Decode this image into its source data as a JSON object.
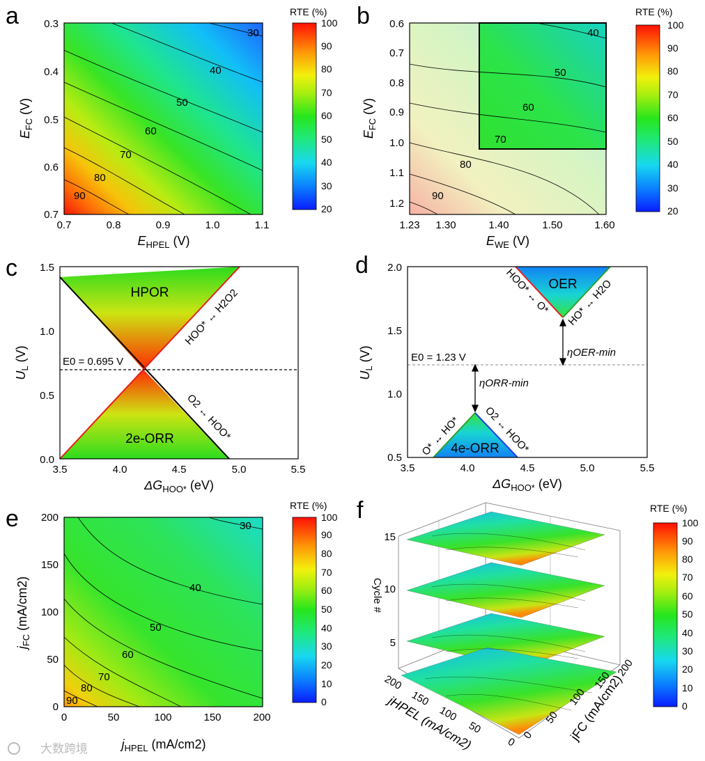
{
  "figure": {
    "panels": [
      "a",
      "b",
      "c",
      "d",
      "e",
      "f"
    ],
    "watermark": "大数跨境",
    "colorbar_title": "RTE (%)"
  },
  "chart_data": [
    {
      "panel": "a",
      "type": "heatmap",
      "xlabel_main": "E",
      "xlabel_sub": "HPEL",
      "xlabel_unit": " (V)",
      "ylabel_main": "E",
      "ylabel_sub": "FC",
      "ylabel_unit": " (V)",
      "xticks": [
        "0.7",
        "0.8",
        "0.9",
        "1.0",
        "1.1"
      ],
      "yticks": [
        "0.3",
        "0.4",
        "0.5",
        "0.6",
        "0.7"
      ],
      "contours": [
        "30",
        "40",
        "50",
        "60",
        "70",
        "80",
        "90"
      ],
      "colorbar": [
        "20",
        "30",
        "40",
        "50",
        "60",
        "70",
        "80",
        "90",
        "100"
      ]
    },
    {
      "panel": "b",
      "type": "heatmap",
      "xlabel_main": "E",
      "xlabel_sub": "WE",
      "xlabel_unit": " (V)",
      "ylabel_main": "E",
      "ylabel_sub": "FC",
      "ylabel_unit": " (V)",
      "xticks": [
        "1.23",
        "1.30",
        "1.40",
        "1.50",
        "1.60"
      ],
      "yticks": [
        "0.6",
        "0.7",
        "0.8",
        "0.9",
        "1.0",
        "1.1",
        "1.2"
      ],
      "contours": [
        "40",
        "50",
        "60",
        "70",
        "80",
        "90"
      ],
      "colorbar": [
        "20",
        "30",
        "40",
        "50",
        "60",
        "70",
        "80",
        "90",
        "100"
      ]
    },
    {
      "panel": "c",
      "type": "area",
      "xlabel_main": "ΔG",
      "xlabel_sub": "HOO*",
      "xlabel_unit": " (eV)",
      "ylabel_main": "U",
      "ylabel_sub": "L",
      "ylabel_unit": " (V)",
      "xticks": [
        "3.5",
        "4.0",
        "4.5",
        "5.0",
        "5.5"
      ],
      "yticks": [
        "0.0",
        "0.5",
        "1.0",
        "1.5"
      ],
      "region_top": "HPOR",
      "region_bottom": "2e-ORR",
      "line_upper": "HOO* ↔ H2O2",
      "line_lower": "O2 ↔ HOO*",
      "e0_label": "E0 = 0.695 V",
      "e0_value": 0.695
    },
    {
      "panel": "d",
      "type": "area",
      "xlabel_main": "ΔG",
      "xlabel_sub": "HOO*",
      "xlabel_unit": " (eV)",
      "ylabel_main": "U",
      "ylabel_sub": "L",
      "ylabel_unit": " (V)",
      "xticks": [
        "3.5",
        "4.0",
        "4.5",
        "5.0",
        "5.5"
      ],
      "yticks": [
        "0.5",
        "1.0",
        "1.5",
        "2.0"
      ],
      "region_top": "OER",
      "region_bottom": "4e-ORR",
      "line_oer_left": "HOO* ↔ O*",
      "line_oer_right": "HO* ↔ H2O",
      "line_orr_left": "O* ↔ HO*",
      "line_orr_right": "O2 ↔ HOO*",
      "eta_orr": "ηORR-min",
      "eta_oer": "ηOER-min",
      "e0_label": "E0 = 1.23 V",
      "e0_value": 1.23
    },
    {
      "panel": "e",
      "type": "heatmap",
      "xlabel_main": "j",
      "xlabel_sub": "HPEL",
      "xlabel_unit": " (mA/cm2)",
      "ylabel_main": "j",
      "ylabel_sub": "FC",
      "ylabel_unit": " (mA/cm2)",
      "xticks": [
        "0",
        "50",
        "100",
        "150",
        "200"
      ],
      "yticks": [
        "0",
        "50",
        "100",
        "150",
        "200"
      ],
      "contours": [
        "30",
        "40",
        "50",
        "60",
        "70",
        "80",
        "90"
      ],
      "colorbar": [
        "0",
        "10",
        "20",
        "30",
        "40",
        "50",
        "60",
        "70",
        "80",
        "90",
        "100"
      ]
    },
    {
      "panel": "f",
      "type": "heatmap",
      "zlabel": "Cycle #",
      "xlabel": "jHPEL (mA/cm2)",
      "ylabel": "jFC (mA/cm2)",
      "zticks": [
        "5",
        "10",
        "15"
      ],
      "xticks": [
        "200",
        "150",
        "100",
        "50",
        "0"
      ],
      "yticks": [
        "0",
        "50",
        "100",
        "150",
        "200"
      ],
      "colorbar": [
        "0",
        "10",
        "20",
        "30",
        "40",
        "50",
        "60",
        "70",
        "80",
        "90",
        "100"
      ]
    }
  ]
}
